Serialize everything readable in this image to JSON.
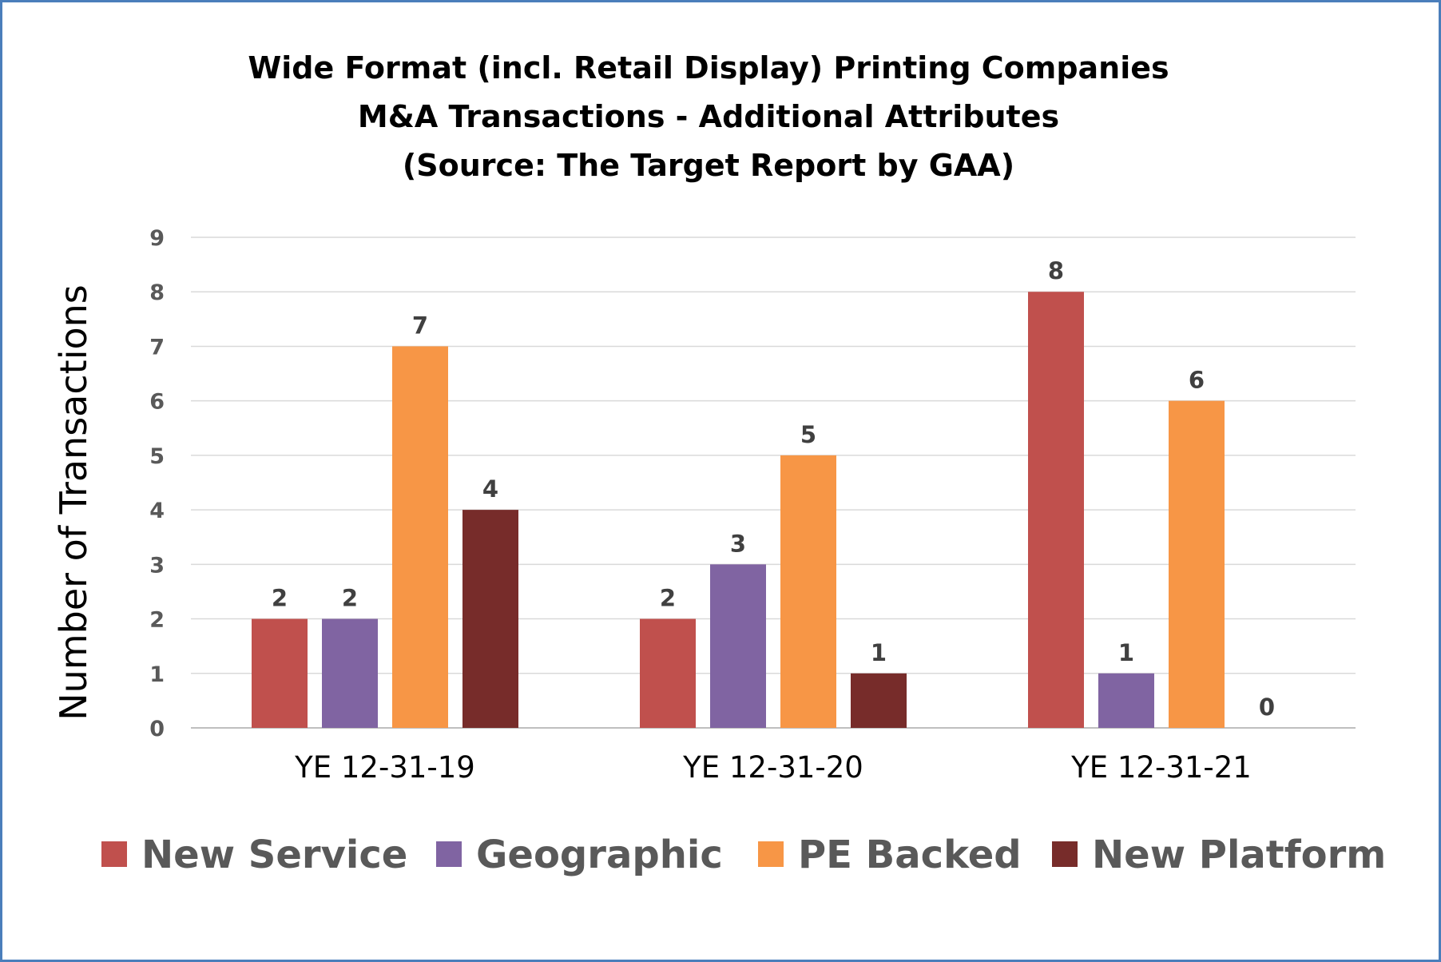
{
  "chart_data": {
    "type": "bar",
    "title": [
      "Wide Format (incl. Retail Display) Printing Companies",
      "M&A Transactions - Additional Attributes",
      "(Source: The Target Report by GAA)"
    ],
    "xlabel": "",
    "ylabel": "Number of Transactions",
    "ylim": [
      0,
      9
    ],
    "yticks": [
      "0",
      "1",
      "2",
      "3",
      "4",
      "5",
      "6",
      "7",
      "8",
      "9"
    ],
    "grid": true,
    "legend_position": "bottom",
    "categories": [
      "YE 12-31-19",
      "YE 12-31-20",
      "YE 12-31-21"
    ],
    "series": [
      {
        "name": "New Service",
        "color": "#c0504d",
        "values": [
          2,
          2,
          8
        ]
      },
      {
        "name": "Geographic",
        "color": "#8064a2",
        "values": [
          2,
          3,
          1
        ]
      },
      {
        "name": "PE Backed",
        "color": "#f79646",
        "values": [
          7,
          5,
          6
        ]
      },
      {
        "name": "New Platform",
        "color": "#772c2a",
        "values": [
          4,
          1,
          0
        ]
      }
    ]
  }
}
